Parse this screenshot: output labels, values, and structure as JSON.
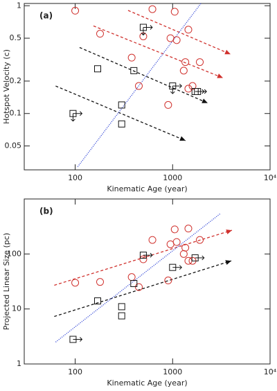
{
  "chart_data": [
    {
      "type": "scatter",
      "panel_label": "(a)",
      "x_label": "Kinematic Age (year)",
      "y_label": "Hotspot Velocity (c)",
      "log_x": true,
      "log_y": true,
      "xlim": [
        30,
        10000
      ],
      "ylim": [
        0.03,
        1.05
      ],
      "xticks": [
        100,
        1000,
        {
          "value": 10000,
          "label": "10⁴"
        }
      ],
      "yticks": [
        0.05,
        0.1,
        0.2,
        0.5,
        1
      ],
      "series": [
        {
          "marker": "circle",
          "color": "#d0312d",
          "x": [
            100,
            180,
            380,
            450,
            500,
            620,
            900,
            950,
            1050,
            1100,
            1300,
            1350,
            1450,
            1450,
            1600,
            1900
          ],
          "values": [
            0.9,
            0.55,
            0.33,
            0.18,
            0.52,
            0.93,
            0.12,
            0.5,
            0.88,
            0.48,
            0.25,
            0.3,
            0.6,
            0.17,
            0.18,
            0.3
          ]
        },
        {
          "marker": "square",
          "color": "#111111",
          "x": [
            95,
            170,
            400,
            300,
            300,
            500,
            1000,
            1700,
            1800
          ],
          "values": [
            0.1,
            0.26,
            0.25,
            0.12,
            0.08,
            0.63,
            0.18,
            0.16,
            0.16
          ],
          "arrows": [
            "right-down",
            null,
            null,
            null,
            null,
            "right-down",
            "right-down",
            "right",
            "right"
          ]
        }
      ],
      "lines": [
        {
          "color": "#d0312d",
          "style": "dashed",
          "arrow": true,
          "x": [
            154,
            3289
          ],
          "values": [
            0.65,
            0.214
          ]
        },
        {
          "color": "#d0312d",
          "style": "dashed",
          "arrow": true,
          "x": [
            349,
            3936
          ],
          "values": [
            0.905,
            0.355
          ]
        },
        {
          "color": "#111111",
          "style": "dashed",
          "arrow": true,
          "x": [
            111,
            2291
          ],
          "values": [
            0.41,
            0.125
          ]
        },
        {
          "color": "#111111",
          "style": "dashed",
          "arrow": true,
          "x": [
            63,
            1358
          ],
          "values": [
            0.18,
            0.056
          ]
        },
        {
          "color": "#3b4fd8",
          "style": "dotted",
          "arrow": false,
          "x": [
            106,
            1950
          ],
          "values": [
            0.032,
            1.05
          ]
        }
      ]
    },
    {
      "type": "scatter",
      "panel_label": "(b)",
      "x_label": "Kinematic Age (year)",
      "y_label": "Projected Linear Size (pc)",
      "log_x": true,
      "log_y": true,
      "xlim": [
        30,
        10000
      ],
      "ylim": [
        1,
        1000
      ],
      "xticks": [
        100,
        1000,
        {
          "value": 10000,
          "label": "10⁴"
        }
      ],
      "yticks": [
        1,
        10,
        100
      ],
      "series": [
        {
          "marker": "circle",
          "color": "#d0312d",
          "x": [
            100,
            180,
            380,
            450,
            500,
            620,
            900,
            950,
            1050,
            1100,
            1300,
            1350,
            1450,
            1450,
            1600,
            1900
          ],
          "values": [
            30,
            31,
            38,
            25,
            80,
            180,
            33,
            150,
            280,
            165,
            100,
            130,
            290,
            75,
            75,
            180
          ]
        },
        {
          "marker": "square",
          "color": "#111111",
          "x": [
            95,
            170,
            400,
            300,
            300,
            500,
            1000,
            1700
          ],
          "values": [
            2.8,
            14,
            29,
            11,
            7.5,
            95,
            57,
            85
          ],
          "arrows": [
            "right",
            null,
            null,
            null,
            null,
            "right",
            "right",
            "right"
          ]
        }
      ],
      "lines": [
        {
          "color": "#d0312d",
          "style": "dashed",
          "arrow": true,
          "x": [
            61,
            4064
          ],
          "values": [
            27,
            270
          ]
        },
        {
          "color": "#111111",
          "style": "dashed",
          "arrow": true,
          "x": [
            61,
            4000
          ],
          "values": [
            7.3,
            75
          ]
        },
        {
          "color": "#3b4fd8",
          "style": "dotted",
          "arrow": false,
          "x": [
            63,
            3080
          ],
          "values": [
            2.5,
            540
          ]
        }
      ]
    }
  ]
}
